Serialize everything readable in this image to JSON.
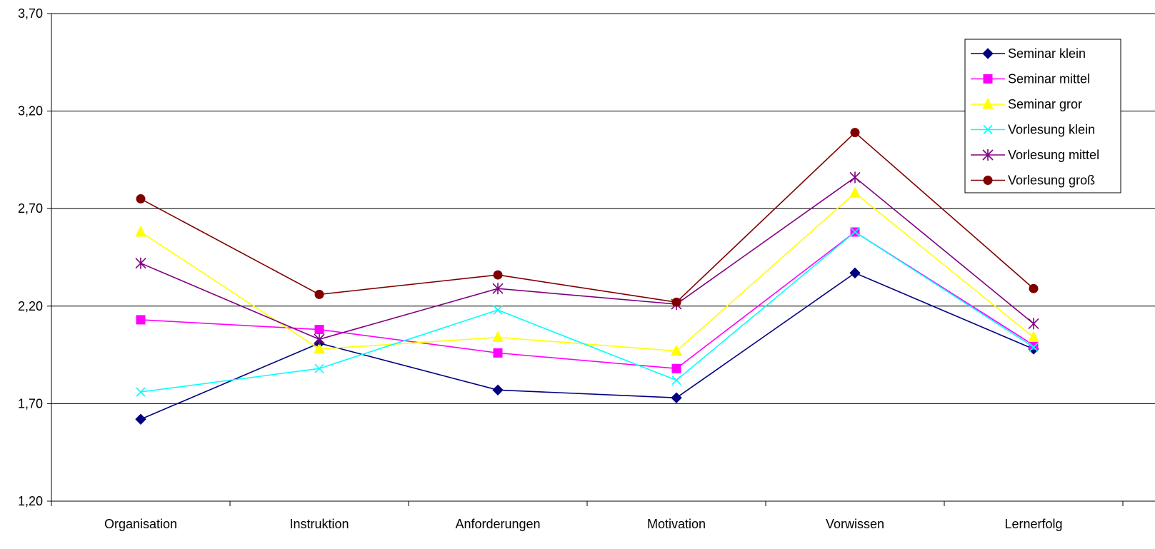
{
  "chart_data": {
    "type": "line",
    "title": "",
    "xlabel": "",
    "ylabel": "",
    "categories": [
      "Organisation",
      "Instruktion",
      "Anforderungen",
      "Motivation",
      "Vorwissen",
      "Lernerfolg"
    ],
    "ylim": [
      1.2,
      3.7
    ],
    "yticks": [
      "1,20",
      "1,70",
      "2,20",
      "2,70",
      "3,20",
      "3,70"
    ],
    "ytick_values": [
      1.2,
      1.7,
      2.2,
      2.7,
      3.2,
      3.7
    ],
    "grid": true,
    "legend_position": "top-right",
    "series": [
      {
        "name": "Seminar klein",
        "color": "#000080",
        "marker": "diamond",
        "values": [
          1.62,
          2.01,
          1.77,
          1.73,
          2.37,
          1.98
        ]
      },
      {
        "name": "Seminar mittel",
        "color": "#FF00FF",
        "marker": "square",
        "values": [
          2.13,
          2.08,
          1.96,
          1.88,
          2.58,
          2.0
        ]
      },
      {
        "name": "Seminar gror",
        "color": "#FFFF00",
        "marker": "triangle",
        "values": [
          2.58,
          1.98,
          2.04,
          1.97,
          2.78,
          2.04
        ]
      },
      {
        "name": "Vorlesung klein",
        "color": "#00FFFF",
        "marker": "x",
        "values": [
          1.76,
          1.88,
          2.18,
          1.82,
          2.58,
          1.99
        ]
      },
      {
        "name": "Vorlesung mittel",
        "color": "#800080",
        "marker": "star",
        "values": [
          2.42,
          2.03,
          2.29,
          2.21,
          2.86,
          2.11
        ]
      },
      {
        "name": "Vorlesung groß",
        "color": "#800000",
        "marker": "circle",
        "values": [
          2.75,
          2.26,
          2.36,
          2.22,
          3.09,
          2.29
        ]
      }
    ]
  }
}
